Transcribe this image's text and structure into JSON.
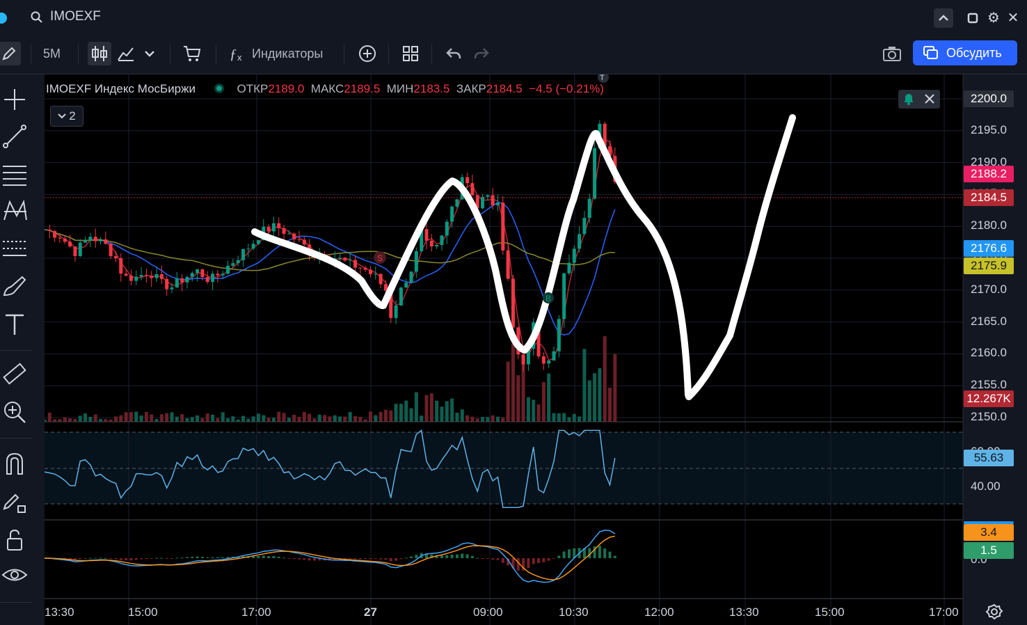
{
  "titlebar": {
    "symbol": "IMOEXF"
  },
  "toolbar": {
    "interval": "5M",
    "indicators_label": "Индикаторы",
    "discuss_label": "Обсудить"
  },
  "legend": {
    "name": "IMOEXF Индекс МосБиржи",
    "open_label": "ОТКР",
    "open": "2189.0",
    "high_label": "МАКС",
    "high": "2189.5",
    "low_label": "МИН",
    "low": "2183.5",
    "close_label": "ЗАКР",
    "close": "2184.5",
    "change": "−4.5 (−0.21%)",
    "collapsed_count": "2"
  },
  "price_tags": {
    "top": "2200.0",
    "ma_fast": "2188.2",
    "last": "2184.5",
    "ma_mid": "2176.6",
    "ma_slow": "2175.9",
    "volume": "12.267K",
    "rsi": "55.63",
    "macd": "3.4",
    "signal": "1.5"
  },
  "colors": {
    "bg": "#131722",
    "chart_bg": "#000000",
    "up": "#089981",
    "down": "#f23645",
    "ma_red": "#b22833",
    "ma_blue": "#2962ff",
    "ma_olive": "#8a8a2e",
    "rsi": "#5fb3e6",
    "macd": "#42a5f5",
    "signal": "#f7931a",
    "brand": "#2962ff"
  },
  "icons": [
    "search-icon",
    "pencil-icon",
    "candles-icon",
    "area-chart-icon",
    "chevron-down-icon",
    "cart-icon",
    "fx-icon",
    "plus-circle-icon",
    "layout-grid-icon",
    "undo-icon",
    "redo-icon",
    "camera-icon",
    "chat-icon",
    "crosshair-icon",
    "trendline-icon",
    "parallel-lines-icon",
    "pattern-icon",
    "fib-icon",
    "brush-icon",
    "text-icon",
    "ruler-icon",
    "zoom-in-icon",
    "magnet-icon",
    "lock-pencil-icon",
    "lock-icon",
    "eye-icon",
    "bell-icon",
    "close-icon",
    "gear-icon"
  ],
  "chart_data": {
    "type": "candlestick",
    "symbol": "IMOEXF",
    "interval": "5M",
    "main_pane": {
      "ylim": [
        2150,
        2200
      ],
      "yticks": [
        2150.0,
        2155.0,
        2160.0,
        2165.0,
        2170.0,
        2175.0,
        2180.0,
        2185.0,
        2190.0,
        2195.0,
        2200.0
      ],
      "price_path": [
        [
          0,
          2179.5
        ],
        [
          12,
          2178.5
        ],
        [
          24,
          2176
        ],
        [
          36,
          2178.5
        ],
        [
          48,
          2177
        ],
        [
          56,
          2175
        ],
        [
          62,
          2172
        ],
        [
          72,
          2172
        ],
        [
          82,
          2173
        ],
        [
          92,
          2171
        ],
        [
          100,
          2170.5
        ],
        [
          110,
          2172
        ],
        [
          120,
          2173
        ],
        [
          130,
          2171.5
        ],
        [
          140,
          2173
        ],
        [
          148,
          2174.5
        ],
        [
          156,
          2176
        ],
        [
          164,
          2177.5
        ],
        [
          170,
          2179
        ],
        [
          174,
          2179.5
        ],
        [
          182,
          2180
        ],
        [
          190,
          2179
        ],
        [
          200,
          2177.5
        ],
        [
          210,
          2176
        ],
        [
          220,
          2175.5
        ],
        [
          230,
          2175
        ],
        [
          240,
          2174
        ],
        [
          250,
          2173.5
        ],
        [
          260,
          2172
        ],
        [
          268,
          2170
        ],
        [
          272,
          2166
        ],
        [
          276,
          2168
        ],
        [
          282,
          2171
        ],
        [
          290,
          2174
        ],
        [
          296,
          2179
        ],
        [
          302,
          2176
        ],
        [
          308,
          2176.5
        ],
        [
          314,
          2179
        ],
        [
          318,
          2182
        ],
        [
          324,
          2185
        ],
        [
          328,
          2188
        ],
        [
          334,
          2186.5
        ],
        [
          340,
          2183
        ],
        [
          346,
          2185
        ],
        [
          350,
          2184
        ],
        [
          356,
          2183
        ],
        [
          360,
          2177
        ],
        [
          364,
          2172
        ],
        [
          368,
          2164
        ],
        [
          372,
          2160
        ],
        [
          376,
          2159
        ],
        [
          380,
          2160
        ],
        [
          384,
          2165
        ],
        [
          388,
          2159
        ],
        [
          394,
          2158
        ],
        [
          400,
          2161
        ],
        [
          404,
          2165
        ],
        [
          408,
          2172
        ],
        [
          414,
          2176
        ],
        [
          418,
          2178.5
        ],
        [
          424,
          2181
        ],
        [
          428,
          2184
        ],
        [
          432,
          2192
        ],
        [
          436,
          2195.5
        ],
        [
          438,
          2194
        ],
        [
          442,
          2192
        ],
        [
          446,
          2189
        ],
        [
          450,
          2186
        ]
      ],
      "volume_max_label": "12.267K",
      "moving_averages": [
        "2188.2",
        "2176.6",
        "2175.9"
      ],
      "markers": [
        "S",
        "B",
        "T"
      ]
    },
    "rsi_pane": {
      "ylim": [
        20,
        70
      ],
      "levels": [
        30,
        50,
        70
      ],
      "ticks": [
        "40.00",
        "60.00"
      ],
      "last": 55.63
    },
    "macd_pane": {
      "ticks": [
        "0.0"
      ],
      "macd": 3.4,
      "signal": 1.5
    },
    "x_ticks": [
      "13:30",
      "15:00",
      "17:00",
      "27",
      "09:00",
      "10:30",
      "12:00",
      "13:30",
      "15:00",
      "17:00"
    ]
  }
}
